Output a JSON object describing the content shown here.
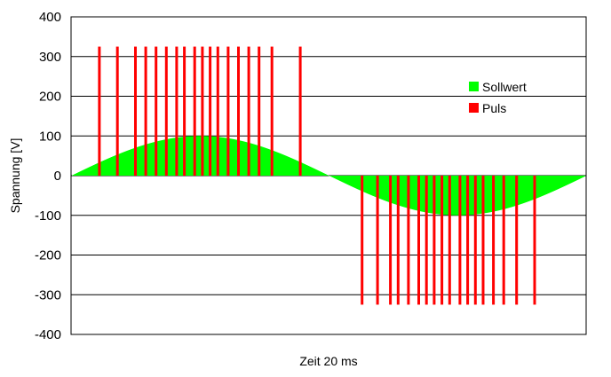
{
  "chart_data": {
    "type": "bar",
    "title": "",
    "xlabel": "Zeit 20 ms",
    "ylabel": "Spannung [V]",
    "ylim": [
      -400,
      400
    ],
    "yticks": [
      400,
      300,
      200,
      100,
      0,
      -100,
      -200,
      -300,
      -400
    ],
    "grid": true,
    "legend_position": "right",
    "x_range_ms": [
      0,
      20
    ],
    "series": [
      {
        "name": "Sollwert",
        "color": "#00ff00",
        "shape": "sine",
        "amplitude": 100,
        "period_ms": 20
      },
      {
        "name": "Puls",
        "color": "#ff0000",
        "height": 325,
        "x": [
          1.1,
          1.8,
          2.5,
          2.9,
          3.3,
          3.7,
          4.1,
          4.4,
          4.8,
          5.1,
          5.4,
          5.7,
          6.1,
          6.5,
          6.9,
          7.3,
          7.8,
          8.9,
          11.3,
          11.9,
          12.4,
          12.7,
          13.1,
          13.5,
          13.8,
          14.1,
          14.4,
          14.7,
          15.1,
          15.4,
          15.7,
          16.0,
          16.4,
          16.8,
          17.3,
          18.0
        ]
      }
    ]
  }
}
